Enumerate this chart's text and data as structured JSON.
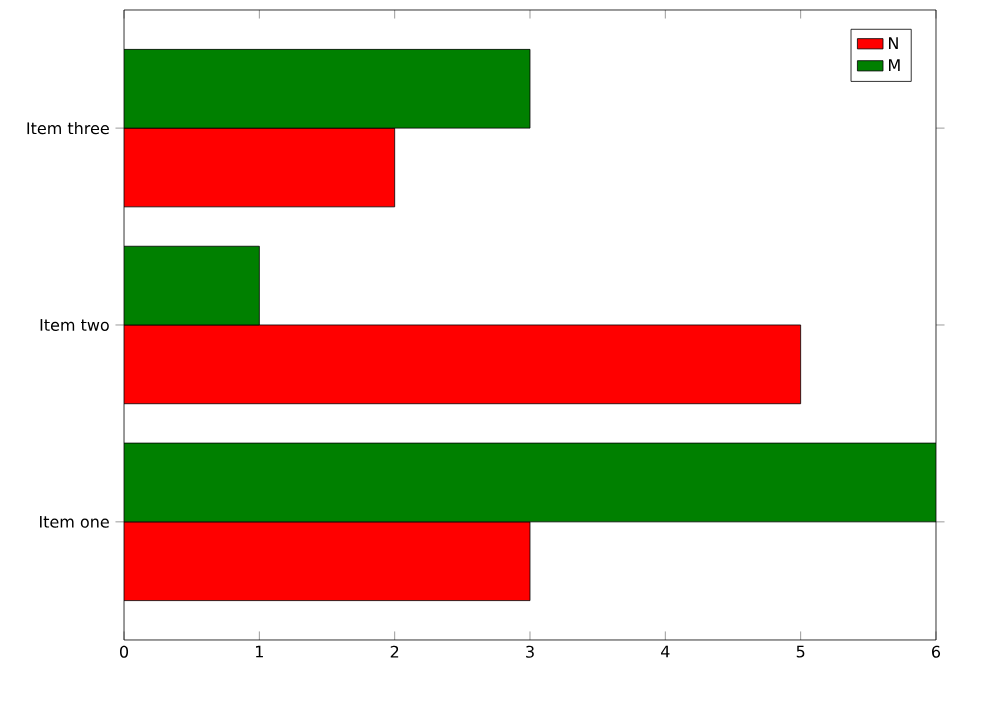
{
  "chart_data": {
    "type": "bar",
    "orientation": "horizontal",
    "categories": [
      "Item three",
      "Item two",
      "Item one"
    ],
    "series": [
      {
        "name": "N",
        "color": "#ff0000",
        "values": [
          2,
          5,
          3
        ]
      },
      {
        "name": "M",
        "color": "#008000",
        "values": [
          3,
          1,
          6
        ]
      }
    ],
    "xlim": [
      0,
      6
    ],
    "xticks": [
      0,
      1,
      2,
      3,
      4,
      5,
      6
    ],
    "legend": "top right",
    "grid": false
  }
}
